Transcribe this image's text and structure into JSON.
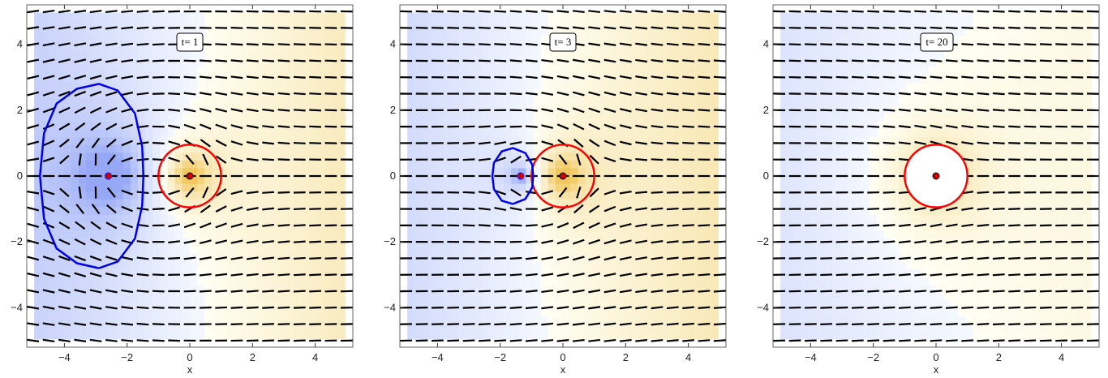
{
  "chart_data": [
    {
      "type": "contour",
      "panel_label": "t= 1",
      "xlabel": "x",
      "ylabel": "",
      "xlim": [
        -5.2,
        5.2
      ],
      "ylim": [
        -5.2,
        5.2
      ],
      "xticks": [
        -4,
        -2,
        0,
        2,
        4
      ],
      "yticks": [
        -4,
        -2,
        0,
        2,
        4
      ],
      "source": [
        0,
        0
      ],
      "sink": [
        -2.6,
        0
      ],
      "red_circle": {
        "center": [
          0,
          0
        ],
        "radius": 1.0,
        "color": "#ff0000"
      },
      "blue_curve": {
        "color": "#0000ee",
        "points": [
          [
            -2.9,
            -2.8
          ],
          [
            -3.6,
            -2.65
          ],
          [
            -4.25,
            -2.2
          ],
          [
            -4.65,
            -1.3
          ],
          [
            -4.78,
            0
          ],
          [
            -4.65,
            1.3
          ],
          [
            -4.25,
            2.2
          ],
          [
            -3.6,
            2.65
          ],
          [
            -2.9,
            2.8
          ],
          [
            -2.3,
            2.6
          ],
          [
            -1.75,
            1.9
          ],
          [
            -1.52,
            0.9
          ],
          [
            -1.48,
            0
          ],
          [
            -1.52,
            -0.9
          ],
          [
            -1.75,
            -1.9
          ],
          [
            -2.3,
            -2.6
          ],
          [
            -2.9,
            -2.8
          ]
        ]
      }
    },
    {
      "type": "contour",
      "panel_label": "t= 3",
      "xlabel": "x",
      "ylabel": "",
      "xlim": [
        -5.2,
        5.2
      ],
      "ylim": [
        -5.2,
        5.2
      ],
      "xticks": [
        -4,
        -2,
        0,
        2,
        4
      ],
      "yticks": [
        -4,
        -2,
        0,
        2,
        4
      ],
      "source": [
        0,
        0
      ],
      "sink": [
        -1.35,
        0
      ],
      "red_circle": {
        "center": [
          0,
          0
        ],
        "radius": 1.0,
        "color": "#ff0000"
      },
      "blue_curve": {
        "color": "#0000ee",
        "points": [
          [
            -1.6,
            -0.85
          ],
          [
            -1.95,
            -0.75
          ],
          [
            -2.2,
            -0.4
          ],
          [
            -2.25,
            0
          ],
          [
            -2.2,
            0.4
          ],
          [
            -1.95,
            0.75
          ],
          [
            -1.6,
            0.85
          ],
          [
            -1.2,
            0.7
          ],
          [
            -0.98,
            0.35
          ],
          [
            -0.95,
            0
          ],
          [
            -0.98,
            -0.35
          ],
          [
            -1.2,
            -0.7
          ],
          [
            -1.6,
            -0.85
          ]
        ]
      }
    },
    {
      "type": "contour",
      "panel_label": "t= 20",
      "xlabel": "x",
      "ylabel": "",
      "xlim": [
        -5.2,
        5.2
      ],
      "ylim": [
        -5.2,
        5.2
      ],
      "xticks": [
        -4,
        -2,
        0,
        2,
        4
      ],
      "yticks": [
        -4,
        -2,
        0,
        2,
        4
      ],
      "source": [
        0,
        0
      ],
      "sink": null,
      "red_circle": {
        "center": [
          0,
          0
        ],
        "radius": 1.0,
        "color": "#ff0000"
      },
      "blue_curve": null
    }
  ]
}
